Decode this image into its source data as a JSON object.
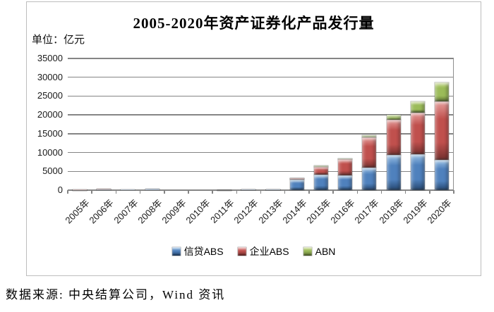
{
  "chart": {
    "title": "2005-2020年资产证券化产品发行量",
    "unit_label": "单位：亿元",
    "source_note": "数据来源: 中央结算公司，Wind 资讯"
  },
  "chart_data": {
    "type": "bar",
    "stacked": true,
    "title": "2005-2020年资产证券化产品发行量",
    "ylabel": "亿元",
    "ylim": [
      0,
      35000
    ],
    "ytick_step": 5000,
    "yticks": [
      0,
      5000,
      10000,
      15000,
      20000,
      25000,
      30000,
      35000
    ],
    "grid": true,
    "legend_position": "bottom",
    "categories": [
      "2005年",
      "2006年",
      "2007年",
      "2008年",
      "2009年",
      "2010年",
      "2011年",
      "2012年",
      "2013年",
      "2014年",
      "2015年",
      "2016年",
      "2017年",
      "2018年",
      "2019年",
      "2020年"
    ],
    "series": [
      {
        "name": "信贷ABS",
        "color": "#4F81BD",
        "color_light": "#9DC3E6",
        "color_dark": "#24456E",
        "values": [
          70,
          115,
          180,
          300,
          0,
          0,
          10,
          190,
          160,
          2820,
          4056,
          3869,
          5977,
          9318,
          9634,
          8041
        ]
      },
      {
        "name": "企业ABS",
        "color": "#C0504D",
        "color_light": "#E6A09E",
        "color_dark": "#722F2D",
        "values": [
          80,
          250,
          0,
          0,
          0,
          0,
          15,
          35,
          120,
          342,
          2092,
          4385,
          7994,
          9477,
          10919,
          15589
        ]
      },
      {
        "name": "ABN",
        "color": "#9BBB59",
        "color_light": "#C9DC8E",
        "color_dark": "#5C7031",
        "values": [
          0,
          0,
          0,
          0,
          0,
          0,
          0,
          0,
          0,
          89,
          354,
          167,
          585,
          1260,
          3088,
          5094
        ]
      }
    ]
  }
}
